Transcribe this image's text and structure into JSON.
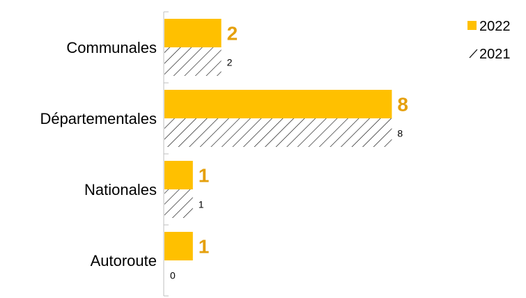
{
  "colors": {
    "series_2022": "#FFC000",
    "label_2022": "#E5A00D",
    "hatch": "#000000",
    "axis": "#BFBFBF"
  },
  "chart_data": {
    "type": "bar",
    "orientation": "horizontal",
    "categories": [
      "Communales",
      "Départementales",
      "Nationales",
      "Autoroute"
    ],
    "series": [
      {
        "name": "2022",
        "values": [
          2,
          8,
          1,
          1
        ],
        "style": "solid",
        "color": "#FFC000"
      },
      {
        "name": "2021",
        "values": [
          2,
          8,
          1,
          0
        ],
        "style": "hatched",
        "color": "#000000"
      }
    ],
    "xlim": [
      0,
      8.7
    ],
    "grid": false,
    "legend": {
      "position": "top-right",
      "entries": [
        "2022",
        "2021"
      ]
    }
  }
}
